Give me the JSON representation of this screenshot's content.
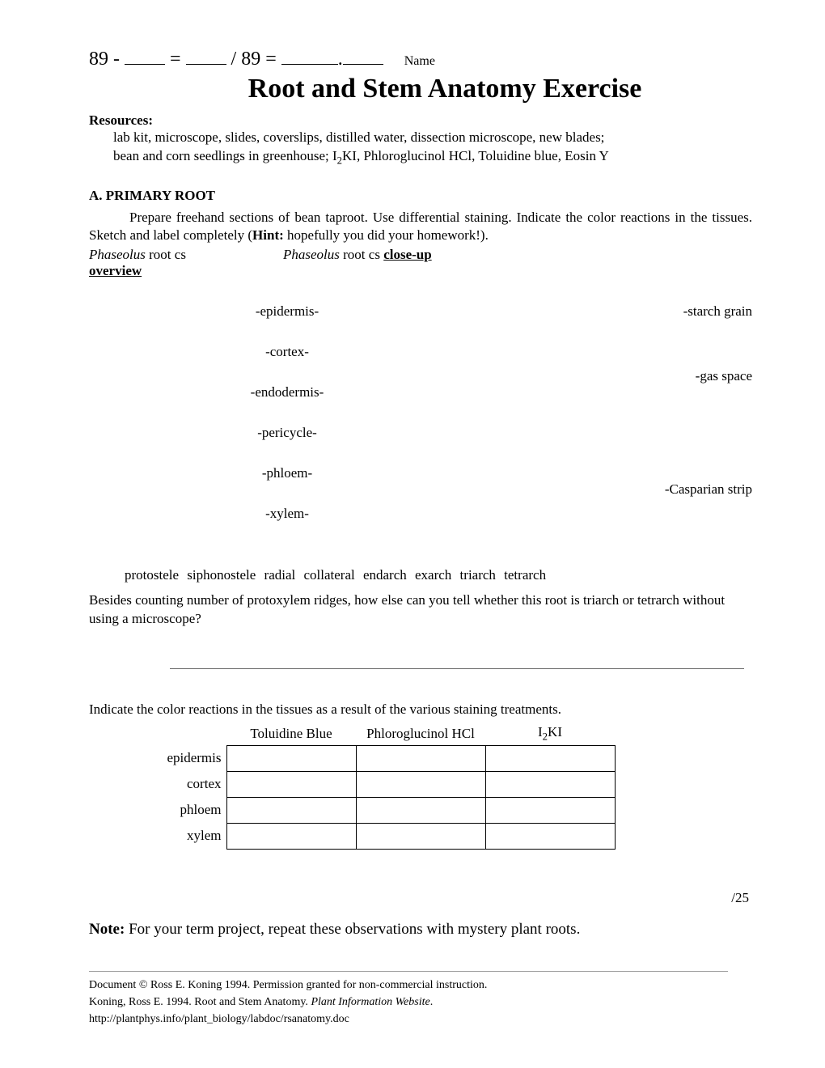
{
  "score": {
    "prefix": "89 -",
    "eq": "=",
    "div": "/ 89 =",
    "dot": ".",
    "name_label": "Name"
  },
  "title": "Root and Stem Anatomy Exercise",
  "resources": {
    "head": "Resources:",
    "line1": "lab kit, microscope, slides, coverslips, distilled water, dissection microscope, new blades;",
    "line2_a": "bean and corn seedlings in greenhouse; I",
    "line2_sub": "2",
    "line2_b": "KI, Phloroglucinol HCl, Toluidine blue, Eosin Y"
  },
  "sectionA": {
    "head": "A.  PRIMARY ROOT",
    "para_a": "Prepare freehand sections of bean taproot. Use differential staining. Indicate the color reactions in the tissues. Sketch and label completely (",
    "hint": "Hint:",
    "para_b": " hopefully you did your homework!).",
    "sub_left_a": "Phaseolus",
    "sub_left_b": " root cs",
    "sub_left_c": "overview",
    "sub_right_a": "Phaseolus",
    "sub_right_b": " root cs ",
    "sub_right_c": "close-up"
  },
  "labels_left": [
    "-epidermis-",
    "-cortex-",
    "-endodermis-",
    "-pericycle-",
    "-phloem-",
    "-xylem-"
  ],
  "labels_right": {
    "r1": "-starch grain",
    "r2": "-gas space",
    "r3": "-Casparian strip"
  },
  "terms": "protostele  siphonostele      radial  collateral      endarch  exarch      triarch  tetrarch",
  "question": "Besides counting number of protoxylem ridges, how else can you tell whether this root is triarch or tetrarch without using a microscope?",
  "indicate": "Indicate the color reactions in the tissues as a result of the various staining treatments.",
  "table": {
    "headers": {
      "h1": "Toluidine Blue",
      "h2": "Phloroglucinol HCl",
      "h3_a": "I",
      "h3_sub": "2",
      "h3_b": "KI"
    },
    "rows": [
      "epidermis",
      "cortex",
      "phloem",
      "xylem"
    ]
  },
  "score_right": "/25",
  "note": {
    "bold": "Note:",
    "text": " For your term project, repeat these observations with mystery plant roots."
  },
  "footer": {
    "copyright": "Document © Ross E. Koning 1994. Permission granted for non-commercial instruction.",
    "ref_a": "Koning, Ross E. 1994. Root and Stem Anatomy. ",
    "ref_i": "Plant Information Website",
    "ref_b": ".",
    "url": "http://plantphys.info/plant_biology/labdoc/rsanatomy.doc"
  }
}
